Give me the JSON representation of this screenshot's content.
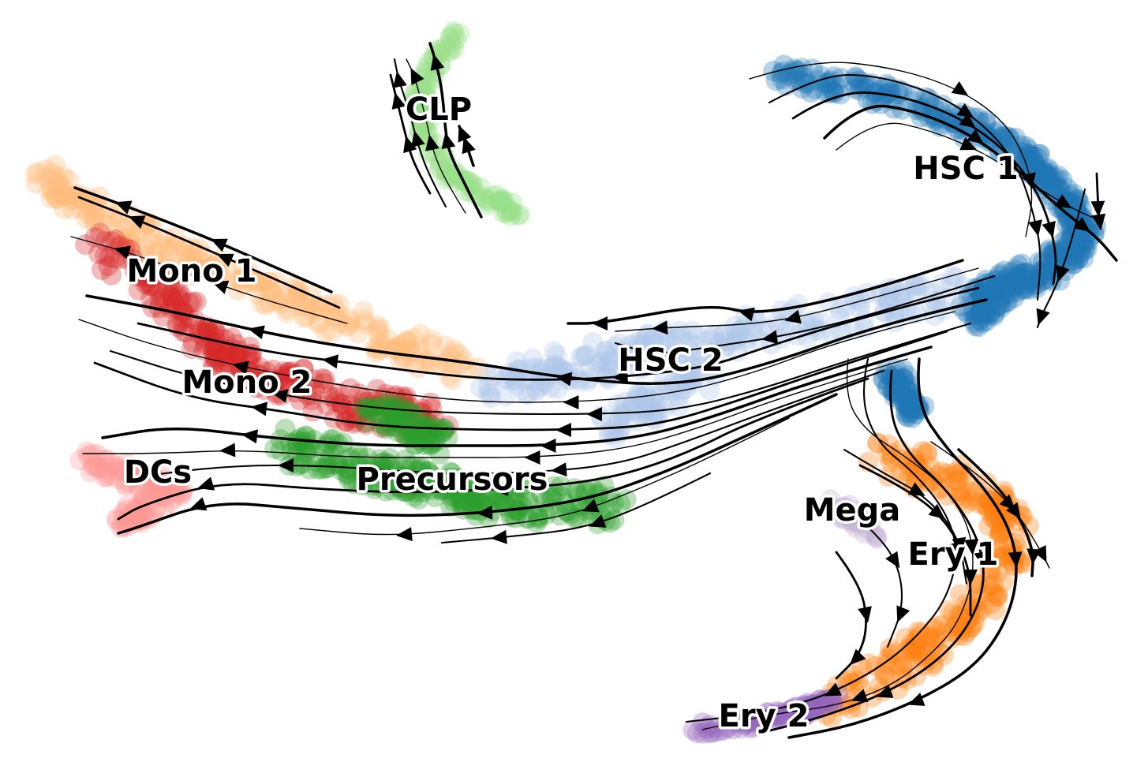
{
  "chart_data": {
    "type": "scatter",
    "description_kind": "velocity-stream-embedding",
    "grid": false,
    "axes_visible": false,
    "legend": "on-data",
    "clusters": [
      {
        "name": "HSC 1",
        "color": "#1f77b4"
      },
      {
        "name": "HSC 2",
        "color": "#aec7e8"
      },
      {
        "name": "Ery 1",
        "color": "#ff7f0e"
      },
      {
        "name": "Ery 2",
        "color": "#9467bd"
      },
      {
        "name": "Mega",
        "color": "#c5b0d5"
      },
      {
        "name": "Mono 1",
        "color": "#ffbb78"
      },
      {
        "name": "Mono 2",
        "color": "#d62728"
      },
      {
        "name": "DCs",
        "color": "#ff9896"
      },
      {
        "name": "Precursors",
        "color": "#2ca02c"
      },
      {
        "name": "CLP",
        "color": "#98df8a"
      }
    ]
  }
}
